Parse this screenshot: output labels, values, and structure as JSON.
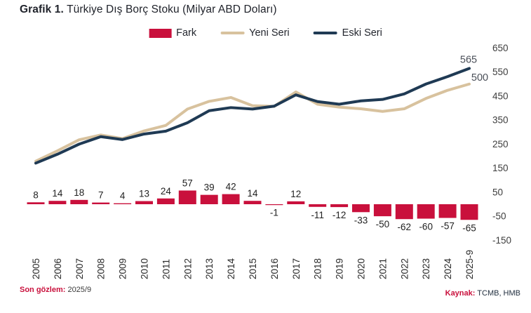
{
  "title": {
    "prefix": "Grafik 1.",
    "text": " Türkiye Dış Borç Stoku (Milyar ABD Doları)"
  },
  "legend": {
    "items": [
      {
        "label": "Fark",
        "swatch": "bar",
        "color": "#C9103C"
      },
      {
        "label": "Yeni Seri",
        "swatch": "line",
        "color": "#D8C29E"
      },
      {
        "label": "Eski Seri",
        "swatch": "line",
        "color": "#1F3A54"
      }
    ]
  },
  "footer": {
    "left_label": "Son gözlem:",
    "left_value": " 2025/9",
    "right_label": "Kaynak:",
    "right_value": " TCMB, HMB"
  },
  "colors": {
    "accent_crimson": "#C9103C",
    "tan": "#D8C29E",
    "navy": "#1F3A54",
    "axis_text": "#3d3d3d",
    "label_text": "#1f1f1f"
  },
  "chart_data": {
    "type": "bar",
    "title": "Grafik 1. Türkiye Dış Borç Stoku (Milyar ABD Doları)",
    "xlabel": "",
    "ylabel": "Milyar ABD Doları",
    "ylim": [
      -150,
      650
    ],
    "yticks": [
      650,
      550,
      450,
      350,
      250,
      150,
      50,
      -50,
      -150
    ],
    "grid": false,
    "legend_position": "top",
    "categories": [
      "2005",
      "2006",
      "2007",
      "2008",
      "2009",
      "2010",
      "2011",
      "2012",
      "2013",
      "2014",
      "2015",
      "2016",
      "2017",
      "2018",
      "2019",
      "2020",
      "2021",
      "2022",
      "2023",
      "2024",
      "2025-9"
    ],
    "series": [
      {
        "name": "Fark",
        "type": "bar",
        "color": "#C9103C",
        "values": [
          8,
          14,
          18,
          7,
          4,
          13,
          24,
          57,
          39,
          42,
          14,
          -1,
          12,
          -11,
          -12,
          -33,
          -50,
          -62,
          -60,
          -57,
          -65
        ],
        "labels_shown": true
      },
      {
        "name": "Yeni Seri",
        "type": "line",
        "color": "#D8C29E",
        "values": [
          179,
          222,
          268,
          288,
          273,
          305,
          328,
          396,
          428,
          444,
          410,
          407,
          467,
          416,
          404,
          397,
          386,
          397,
          440,
          474,
          500
        ],
        "end_label": "500"
      },
      {
        "name": "Eski Seri",
        "type": "line",
        "color": "#1F3A54",
        "values": [
          171,
          208,
          250,
          281,
          269,
          292,
          304,
          339,
          389,
          402,
          396,
          408,
          455,
          427,
          416,
          430,
          436,
          459,
          500,
          531,
          565
        ],
        "end_label": "565"
      }
    ]
  }
}
